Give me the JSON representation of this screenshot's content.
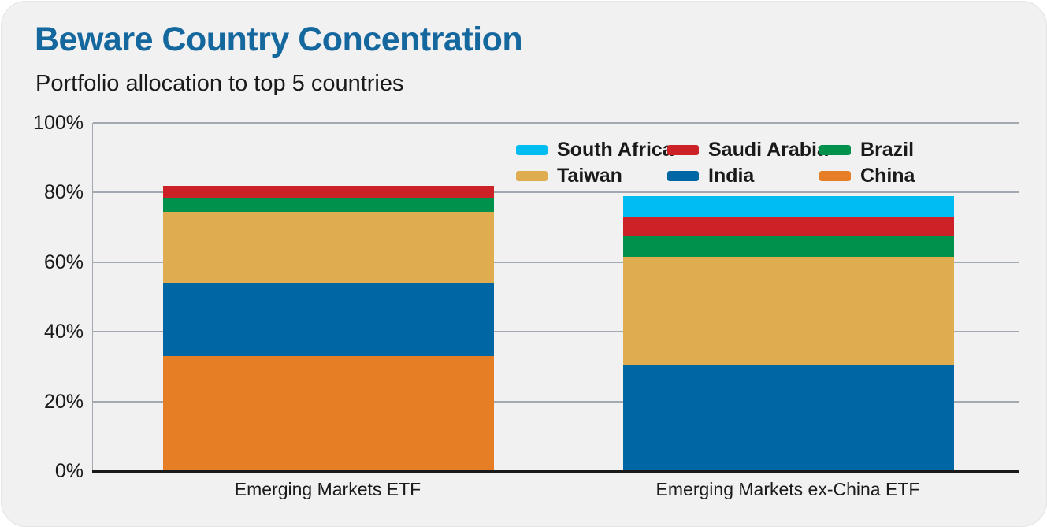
{
  "header": {
    "title": "Beware Country Concentration",
    "subtitle": "Portfolio allocation to top 5 countries"
  },
  "colors": {
    "title_blue": "#15689E",
    "card_background": "#F2F1F2",
    "gridline": "#A3A9B0",
    "axis_line": "#1A1A1A",
    "text": "#1A1A1A"
  },
  "chart_data": {
    "type": "bar",
    "variant": "stacked",
    "title": "Beware Country Concentration",
    "subtitle": "Portfolio allocation to top 5 countries",
    "categories": [
      "Emerging Markets ETF",
      "Emerging Markets ex-China ETF"
    ],
    "series": [
      {
        "name": "China",
        "color": "#E67E26",
        "values": [
          33,
          0
        ]
      },
      {
        "name": "India",
        "color": "#0066A4",
        "values": [
          21,
          30.5
        ]
      },
      {
        "name": "Taiwan",
        "color": "#DFAC50",
        "values": [
          20.5,
          31
        ]
      },
      {
        "name": "Brazil",
        "color": "#00914D",
        "values": [
          4,
          6
        ]
      },
      {
        "name": "Saudi Arabia",
        "color": "#CC2127",
        "values": [
          3.5,
          5.5
        ]
      },
      {
        "name": "South Africa",
        "color": "#00BDF1",
        "values": [
          0,
          6
        ]
      }
    ],
    "stack_order_note": "series listed bottom-to-top",
    "totals": [
      82,
      79
    ],
    "y_axis": {
      "min": 0,
      "max": 100,
      "ticks": [
        0,
        20,
        40,
        60,
        80,
        100
      ],
      "tick_suffix": "%"
    },
    "x_axis": {
      "labels": [
        "Emerging Markets ETF",
        "Emerging Markets ex-China ETF"
      ]
    },
    "legend": {
      "position": "top-right",
      "columns": 3,
      "order": [
        "South Africa",
        "Saudi Arabia",
        "Brazil",
        "Taiwan",
        "India",
        "China"
      ]
    },
    "grid": true
  }
}
